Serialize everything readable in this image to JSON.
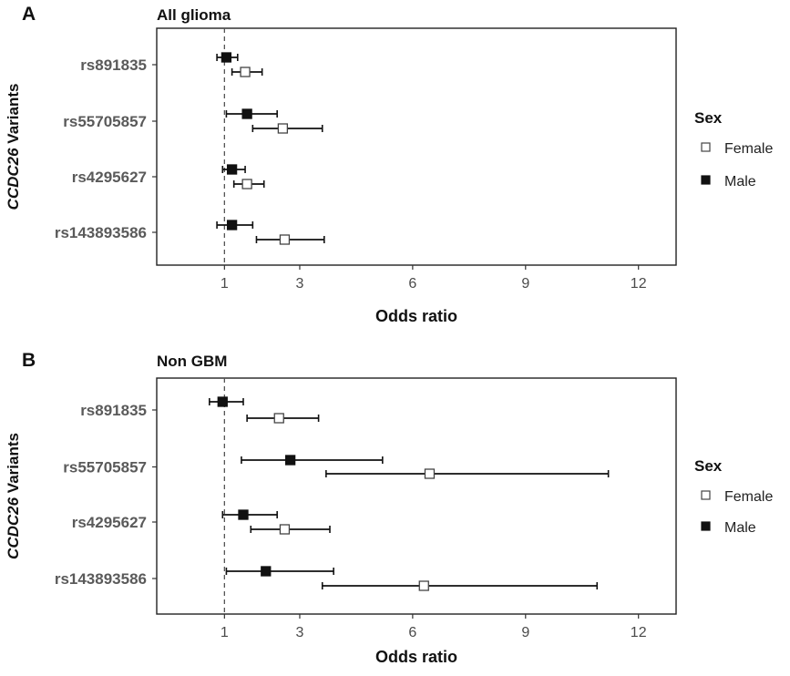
{
  "figure": {
    "panels": [
      {
        "letter": "A",
        "title": "All glioma",
        "xlabel": "Odds ratio",
        "ylabel_italic": "CCDC26",
        "ylabel_rest": " Variants",
        "legend": {
          "title": "Sex",
          "entries": [
            "Female",
            "Male"
          ]
        }
      },
      {
        "letter": "B",
        "title": "Non GBM",
        "xlabel": "Odds ratio",
        "ylabel_italic": "CCDC26",
        "ylabel_rest": " Variants",
        "legend": {
          "title": "Sex",
          "entries": [
            "Female",
            "Male"
          ]
        }
      }
    ]
  },
  "chart_data": [
    {
      "type": "scatter",
      "subtype": "forest-plot",
      "title": "All glioma",
      "xlabel": "Odds ratio",
      "ylabel": "CCDC26 Variants",
      "xlim": [
        -0.8,
        13.0
      ],
      "xticks": [
        1,
        3,
        6,
        9,
        12
      ],
      "reference_line": 1,
      "categories": [
        "rs891835",
        "rs55705857",
        "rs4295627",
        "rs143893586"
      ],
      "legend": {
        "title": "Sex",
        "position": "right"
      },
      "series": [
        {
          "name": "Male",
          "marker": "filled-square",
          "values": [
            1.05,
            1.6,
            1.2,
            1.2
          ],
          "ci_low": [
            0.8,
            1.05,
            0.95,
            0.8
          ],
          "ci_high": [
            1.35,
            2.4,
            1.55,
            1.75
          ]
        },
        {
          "name": "Female",
          "marker": "open-square",
          "values": [
            1.55,
            2.55,
            1.6,
            2.6
          ],
          "ci_low": [
            1.2,
            1.75,
            1.25,
            1.85
          ],
          "ci_high": [
            2.0,
            3.6,
            2.05,
            3.65
          ]
        }
      ]
    },
    {
      "type": "scatter",
      "subtype": "forest-plot",
      "title": "Non GBM",
      "xlabel": "Odds ratio",
      "ylabel": "CCDC26 Variants",
      "xlim": [
        -0.8,
        13.0
      ],
      "xticks": [
        1,
        3,
        6,
        9,
        12
      ],
      "reference_line": 1,
      "categories": [
        "rs891835",
        "rs55705857",
        "rs4295627",
        "rs143893586"
      ],
      "legend": {
        "title": "Sex",
        "position": "right"
      },
      "series": [
        {
          "name": "Male",
          "marker": "filled-square",
          "values": [
            0.95,
            2.75,
            1.5,
            2.1
          ],
          "ci_low": [
            0.6,
            1.45,
            0.95,
            1.05
          ],
          "ci_high": [
            1.5,
            5.2,
            2.4,
            3.9
          ]
        },
        {
          "name": "Female",
          "marker": "open-square",
          "values": [
            2.45,
            6.45,
            2.6,
            6.3
          ],
          "ci_low": [
            1.6,
            3.7,
            1.7,
            3.6
          ],
          "ci_high": [
            3.5,
            11.2,
            3.8,
            10.9
          ]
        }
      ]
    }
  ]
}
